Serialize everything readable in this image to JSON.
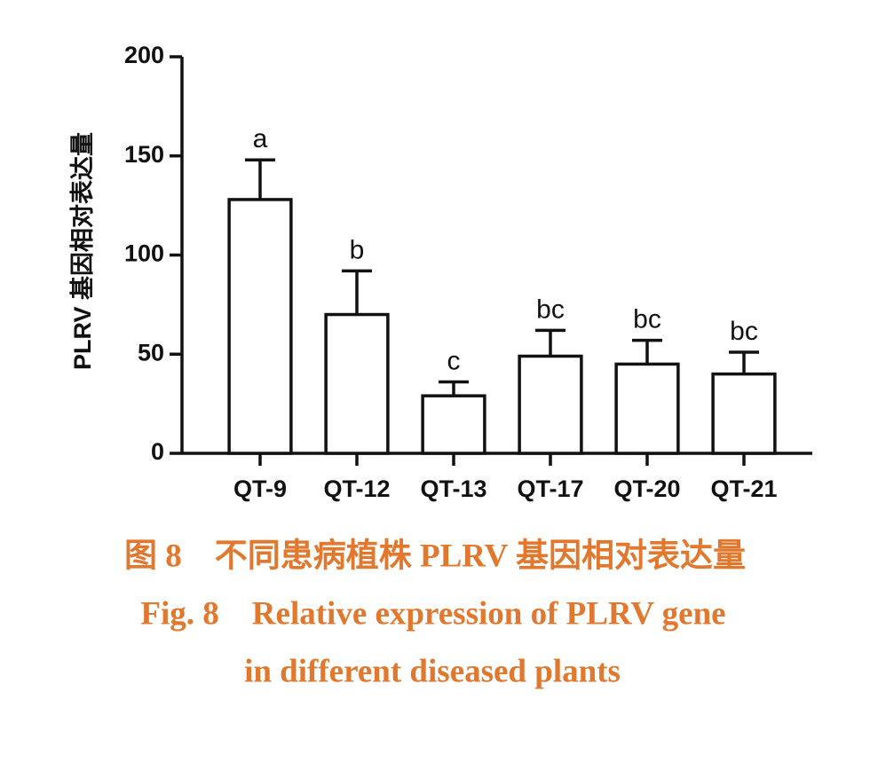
{
  "chart_data": {
    "type": "bar",
    "ylabel": "PLRV 基因相对表达量",
    "categories": [
      "QT-9",
      "QT-12",
      "QT-13",
      "QT-17",
      "QT-20",
      "QT-21"
    ],
    "values": [
      128,
      70,
      29,
      49,
      45,
      40
    ],
    "errors": [
      20,
      22,
      7,
      13,
      12,
      11
    ],
    "annotations": [
      "a",
      "b",
      "c",
      "bc",
      "bc",
      "bc"
    ],
    "color": "#ffffff",
    "ylim": [
      0,
      200
    ],
    "yticks": [
      0,
      50,
      100,
      150,
      200
    ],
    "grid": false
  },
  "caption": [
    "图 8　不同患病植株 PLRV 基因相对表达量",
    "Fig. 8　Relative expression of PLRV gene",
    "in different diseased plants"
  ]
}
